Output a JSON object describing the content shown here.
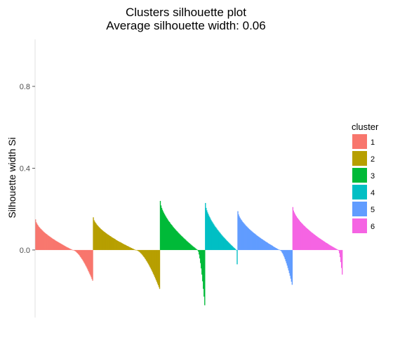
{
  "chart_data": {
    "type": "bar",
    "title": "Clusters silhouette plot",
    "subtitle": "Average silhouette width: 0.06",
    "xlabel": "",
    "ylabel": "Silhouette width Si",
    "ylim": [
      -0.33,
      1.03
    ],
    "yticks": [
      0.0,
      0.4,
      0.8
    ],
    "ytick_labels": [
      "0.0",
      "0.4",
      "0.8"
    ],
    "grid": false,
    "legend": {
      "title": "cluster",
      "position": "right"
    },
    "series": [
      {
        "name": "1",
        "color": "#F8766D",
        "start": 0.15,
        "end": -0.15,
        "n": 82,
        "cross": 0.65
      },
      {
        "name": "2",
        "color": "#B79F00",
        "start": 0.16,
        "end": -0.19,
        "n": 95,
        "cross": 0.64
      },
      {
        "name": "3",
        "color": "#00BA38",
        "start": 0.24,
        "end": -0.27,
        "n": 64,
        "cross": 0.84
      },
      {
        "name": "4",
        "color": "#00BFC4",
        "start": 0.23,
        "end": -0.07,
        "n": 46,
        "cross": 0.98
      },
      {
        "name": "5",
        "color": "#619CFF",
        "start": 0.19,
        "end": -0.17,
        "n": 78,
        "cross": 0.77
      },
      {
        "name": "6",
        "color": "#F564E3",
        "start": 0.21,
        "end": -0.12,
        "n": 71,
        "cross": 0.92
      }
    ]
  }
}
